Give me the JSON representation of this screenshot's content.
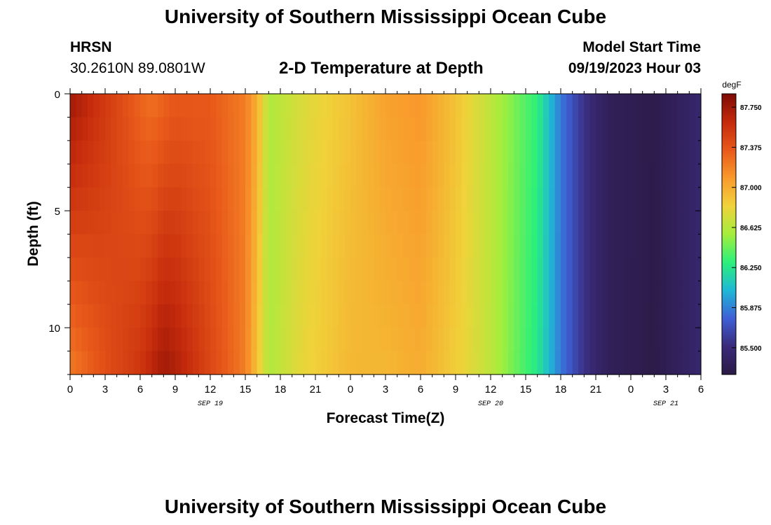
{
  "header": {
    "title": "University of Southern Mississippi Ocean Cube",
    "station": "HRSN",
    "coordinates": "30.2610N  89.0801W",
    "start_label": "Model Start Time",
    "start_value": "09/19/2023 Hour 03"
  },
  "footer": {
    "title": "University of Southern Mississippi Ocean Cube"
  },
  "chart_data": {
    "type": "heatmap",
    "title": "2-D Temperature at Depth",
    "xlabel": "Forecast Time(Z)",
    "ylabel": "Depth (ft)",
    "x_hours": [
      0,
      54
    ],
    "x_ticks": [
      {
        "hour": 0,
        "label": "0"
      },
      {
        "hour": 3,
        "label": "3"
      },
      {
        "hour": 6,
        "label": "6"
      },
      {
        "hour": 9,
        "label": "9"
      },
      {
        "hour": 12,
        "label": "12"
      },
      {
        "hour": 15,
        "label": "15"
      },
      {
        "hour": 18,
        "label": "18"
      },
      {
        "hour": 21,
        "label": "21"
      },
      {
        "hour": 24,
        "label": "0"
      },
      {
        "hour": 27,
        "label": "3"
      },
      {
        "hour": 30,
        "label": "6"
      },
      {
        "hour": 33,
        "label": "9"
      },
      {
        "hour": 36,
        "label": "12"
      },
      {
        "hour": 39,
        "label": "15"
      },
      {
        "hour": 42,
        "label": "18"
      },
      {
        "hour": 45,
        "label": "21"
      },
      {
        "hour": 48,
        "label": "0"
      },
      {
        "hour": 51,
        "label": "3"
      },
      {
        "hour": 54,
        "label": "6"
      }
    ],
    "date_labels": [
      {
        "hour": 12,
        "label": "SEP 19"
      },
      {
        "hour": 36,
        "label": "SEP 20"
      },
      {
        "hour": 51,
        "label": "SEP 21"
      }
    ],
    "ylim": [
      0,
      12
    ],
    "y_ticks": [
      {
        "value": 0,
        "label": "0"
      },
      {
        "value": 5,
        "label": "5"
      },
      {
        "value": 10,
        "label": "10"
      }
    ],
    "colorbar": {
      "unit": "degF",
      "range": [
        85.25,
        87.875
      ],
      "ticks": [
        "87.750",
        "87.375",
        "87.000",
        "86.625",
        "86.250",
        "85.875",
        "85.500"
      ],
      "colors": [
        "#2b1a45",
        "#3a2a7a",
        "#3f5fd6",
        "#1fb8d6",
        "#2cf07a",
        "#a4ee3c",
        "#f0d23a",
        "#f99a2c",
        "#e8581a",
        "#c42a0c",
        "#7e0a04"
      ]
    },
    "surface_temperature": [
      {
        "hour": 0,
        "value": 87.75
      },
      {
        "hour": 2,
        "value": 87.6
      },
      {
        "hour": 4,
        "value": 87.45
      },
      {
        "hour": 6,
        "value": 87.3
      },
      {
        "hour": 7,
        "value": 87.25
      },
      {
        "hour": 9,
        "value": 87.35
      },
      {
        "hour": 12,
        "value": 87.35
      },
      {
        "hour": 15,
        "value": 87.2
      },
      {
        "hour": 16,
        "value": 87.0
      },
      {
        "hour": 17,
        "value": 86.6
      },
      {
        "hour": 20,
        "value": 86.75
      },
      {
        "hour": 24,
        "value": 86.9
      },
      {
        "hour": 27,
        "value": 87.05
      },
      {
        "hour": 30,
        "value": 87.1
      },
      {
        "hour": 33,
        "value": 86.9
      },
      {
        "hour": 36,
        "value": 86.65
      },
      {
        "hour": 40,
        "value": 86.3
      },
      {
        "hour": 42,
        "value": 85.85
      },
      {
        "hour": 44,
        "value": 85.55
      },
      {
        "hour": 46,
        "value": 85.35
      },
      {
        "hour": 50,
        "value": 85.28
      },
      {
        "hour": 54,
        "value": 85.45
      }
    ],
    "bottom_temperature": [
      {
        "hour": 0,
        "value": 87.2
      },
      {
        "hour": 3,
        "value": 87.4
      },
      {
        "hour": 6,
        "value": 87.55
      },
      {
        "hour": 8,
        "value": 87.75
      },
      {
        "hour": 9,
        "value": 87.7
      },
      {
        "hour": 12,
        "value": 87.45
      },
      {
        "hour": 15,
        "value": 87.2
      },
      {
        "hour": 16,
        "value": 86.9
      },
      {
        "hour": 17,
        "value": 86.6
      },
      {
        "hour": 20,
        "value": 86.8
      },
      {
        "hour": 24,
        "value": 86.95
      },
      {
        "hour": 27,
        "value": 86.95
      },
      {
        "hour": 30,
        "value": 87.0
      },
      {
        "hour": 33,
        "value": 86.85
      },
      {
        "hour": 36,
        "value": 86.65
      },
      {
        "hour": 40,
        "value": 86.25
      },
      {
        "hour": 42,
        "value": 85.85
      },
      {
        "hour": 44,
        "value": 85.55
      },
      {
        "hour": 46,
        "value": 85.35
      },
      {
        "hour": 50,
        "value": 85.27
      },
      {
        "hour": 54,
        "value": 85.45
      }
    ]
  }
}
